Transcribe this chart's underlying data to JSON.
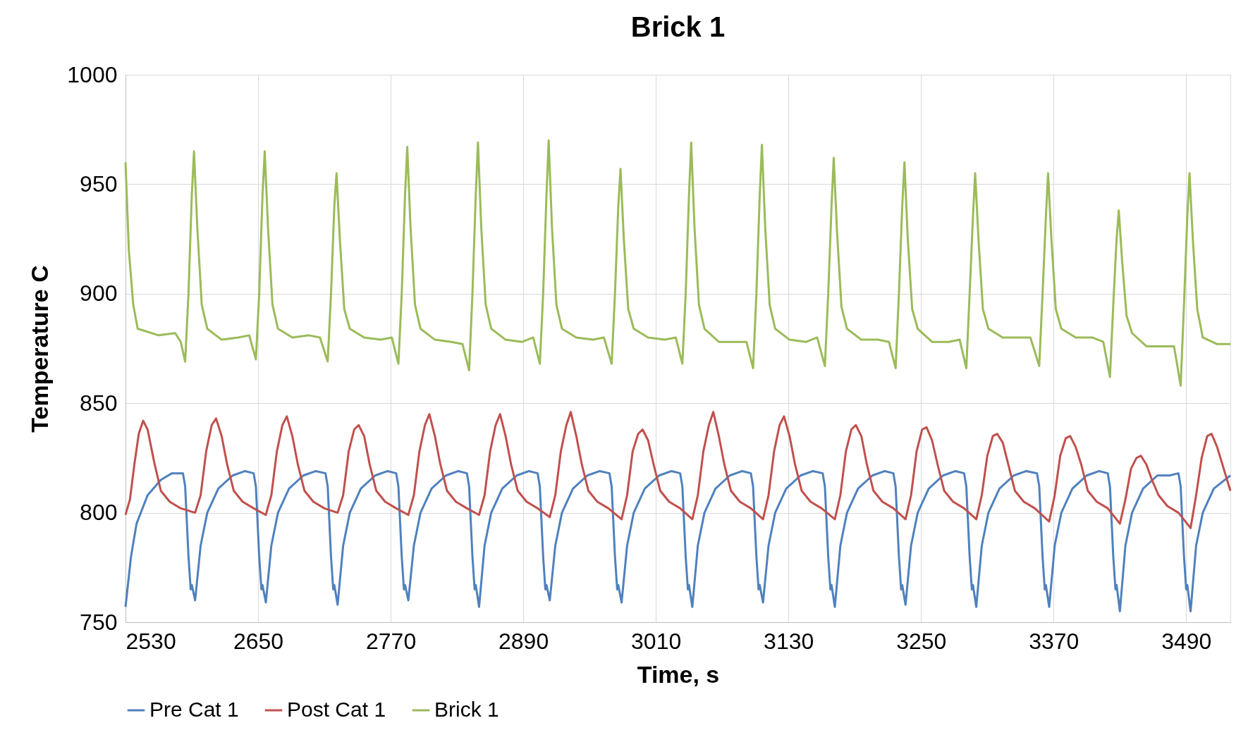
{
  "chart_data": {
    "type": "line",
    "title": "Brick 1",
    "xlabel": "Time, s",
    "ylabel": "Temperature C",
    "xlim": [
      2530,
      3530
    ],
    "xticks": [
      2530,
      2650,
      2770,
      2890,
      3010,
      3130,
      3250,
      3370,
      3490
    ],
    "ylim": [
      750,
      1000
    ],
    "yticks": [
      750,
      800,
      850,
      900,
      950,
      1000
    ],
    "grid": true,
    "legend": "bottom",
    "marker": "none",
    "line_style": "solid",
    "series": [
      {
        "name": "Pre Cat 1",
        "color": "#4f81bd",
        "x": [
          2530,
          2535,
          2540,
          2550,
          2562,
          2572,
          2582,
          2584,
          2587,
          2589,
          2590,
          2593,
          2598,
          2604,
          2614,
          2627,
          2638,
          2646,
          2648,
          2651,
          2653,
          2654,
          2657,
          2662,
          2668,
          2678,
          2691,
          2702,
          2711,
          2713,
          2716,
          2718,
          2719,
          2722,
          2727,
          2733,
          2743,
          2756,
          2767,
          2775,
          2777,
          2780,
          2782,
          2783,
          2786,
          2791,
          2797,
          2807,
          2820,
          2831,
          2839,
          2841,
          2844,
          2846,
          2847,
          2850,
          2855,
          2861,
          2871,
          2884,
          2895,
          2903,
          2905,
          2908,
          2910,
          2911,
          2914,
          2919,
          2925,
          2935,
          2948,
          2959,
          2968,
          2970,
          2973,
          2975,
          2976,
          2979,
          2984,
          2990,
          3000,
          3013,
          3024,
          3032,
          3034,
          3037,
          3039,
          3040,
          3043,
          3048,
          3054,
          3064,
          3077,
          3088,
          3096,
          3098,
          3101,
          3103,
          3104,
          3107,
          3112,
          3118,
          3128,
          3141,
          3152,
          3161,
          3163,
          3166,
          3168,
          3169,
          3172,
          3177,
          3183,
          3193,
          3206,
          3217,
          3225,
          3227,
          3230,
          3232,
          3233,
          3236,
          3241,
          3247,
          3257,
          3270,
          3281,
          3289,
          3291,
          3294,
          3296,
          3297,
          3300,
          3305,
          3311,
          3321,
          3334,
          3345,
          3355,
          3357,
          3360,
          3362,
          3363,
          3366,
          3371,
          3377,
          3387,
          3400,
          3411,
          3419,
          3421,
          3424,
          3426,
          3427,
          3430,
          3435,
          3441,
          3451,
          3464,
          3475,
          3483,
          3485,
          3488,
          3490,
          3491,
          3494,
          3499,
          3505,
          3515,
          3530
        ],
        "values": [
          757,
          780,
          795,
          808,
          815,
          818,
          818,
          812,
          780,
          765,
          767,
          760,
          785,
          800,
          811,
          817,
          819,
          818,
          812,
          780,
          765,
          767,
          759,
          785,
          800,
          811,
          817,
          819,
          818,
          812,
          780,
          765,
          767,
          758,
          785,
          800,
          811,
          817,
          819,
          818,
          812,
          780,
          765,
          767,
          760,
          785,
          800,
          811,
          817,
          819,
          818,
          812,
          780,
          765,
          767,
          757,
          785,
          800,
          811,
          817,
          819,
          818,
          812,
          780,
          765,
          767,
          760,
          785,
          800,
          811,
          817,
          819,
          818,
          812,
          780,
          765,
          767,
          759,
          785,
          800,
          811,
          817,
          819,
          818,
          812,
          780,
          765,
          767,
          757,
          785,
          800,
          811,
          817,
          819,
          818,
          812,
          780,
          765,
          767,
          759,
          785,
          800,
          811,
          817,
          819,
          818,
          812,
          780,
          765,
          767,
          757,
          785,
          800,
          811,
          817,
          819,
          818,
          812,
          780,
          765,
          767,
          758,
          785,
          800,
          811,
          817,
          819,
          818,
          812,
          780,
          765,
          767,
          757,
          785,
          800,
          811,
          817,
          819,
          818,
          812,
          780,
          765,
          767,
          757,
          785,
          800,
          811,
          817,
          819,
          818,
          812,
          780,
          765,
          767,
          755,
          785,
          800,
          811,
          817,
          817,
          818,
          812,
          780,
          765,
          767,
          755,
          785,
          800,
          811,
          817
        ]
      },
      {
        "name": "Post Cat 1",
        "color": "#c0504d",
        "x": [
          2530,
          2534,
          2538,
          2542,
          2546,
          2550,
          2556,
          2562,
          2570,
          2580,
          2593,
          2598,
          2603,
          2608,
          2612,
          2617,
          2622,
          2628,
          2636,
          2646,
          2657,
          2662,
          2667,
          2672,
          2676,
          2681,
          2686,
          2692,
          2700,
          2710,
          2722,
          2727,
          2732,
          2737,
          2741,
          2746,
          2751,
          2757,
          2765,
          2775,
          2786,
          2791,
          2796,
          2801,
          2805,
          2810,
          2815,
          2821,
          2829,
          2839,
          2850,
          2855,
          2860,
          2865,
          2869,
          2874,
          2879,
          2885,
          2893,
          2903,
          2914,
          2919,
          2924,
          2929,
          2933,
          2938,
          2943,
          2949,
          2957,
          2967,
          2979,
          2984,
          2989,
          2994,
          2998,
          3003,
          3008,
          3014,
          3022,
          3032,
          3043,
          3048,
          3053,
          3058,
          3062,
          3067,
          3072,
          3078,
          3086,
          3096,
          3107,
          3112,
          3117,
          3122,
          3126,
          3131,
          3136,
          3142,
          3150,
          3160,
          3172,
          3177,
          3182,
          3187,
          3191,
          3196,
          3201,
          3207,
          3215,
          3225,
          3236,
          3241,
          3246,
          3251,
          3255,
          3260,
          3265,
          3271,
          3279,
          3289,
          3300,
          3305,
          3310,
          3315,
          3319,
          3324,
          3329,
          3335,
          3343,
          3353,
          3366,
          3371,
          3376,
          3381,
          3385,
          3390,
          3395,
          3401,
          3409,
          3419,
          3430,
          3435,
          3440,
          3445,
          3449,
          3454,
          3459,
          3465,
          3473,
          3483,
          3494,
          3499,
          3504,
          3509,
          3513,
          3518,
          3524,
          3530
        ],
        "values": [
          799,
          806,
          822,
          836,
          842,
          838,
          823,
          810,
          805,
          802,
          800,
          808,
          828,
          840,
          843,
          835,
          822,
          810,
          805,
          802,
          799,
          808,
          828,
          840,
          844,
          835,
          822,
          810,
          805,
          802,
          800,
          808,
          828,
          838,
          840,
          835,
          822,
          810,
          805,
          802,
          799,
          808,
          828,
          840,
          845,
          835,
          822,
          810,
          805,
          802,
          799,
          808,
          828,
          840,
          845,
          835,
          822,
          810,
          805,
          802,
          798,
          808,
          828,
          840,
          846,
          835,
          822,
          810,
          805,
          802,
          797,
          808,
          828,
          836,
          838,
          833,
          822,
          810,
          805,
          802,
          797,
          808,
          828,
          840,
          846,
          835,
          822,
          810,
          805,
          802,
          797,
          808,
          828,
          840,
          844,
          835,
          822,
          810,
          805,
          802,
          797,
          808,
          828,
          838,
          840,
          835,
          822,
          810,
          805,
          802,
          797,
          808,
          828,
          838,
          839,
          833,
          822,
          810,
          805,
          802,
          797,
          808,
          826,
          835,
          836,
          832,
          822,
          810,
          805,
          802,
          796,
          808,
          826,
          834,
          835,
          830,
          822,
          810,
          805,
          802,
          795,
          806,
          820,
          825,
          826,
          822,
          815,
          808,
          803,
          800,
          793,
          808,
          825,
          835,
          836,
          830,
          820,
          810
        ]
      },
      {
        "name": "Brick 1",
        "color": "#9bbb59",
        "x": [
          2530,
          2533,
          2537,
          2541,
          2560,
          2575,
          2580,
          2584,
          2587,
          2590,
          2592,
          2595,
          2599,
          2604,
          2617,
          2632,
          2642,
          2648,
          2651,
          2654,
          2656,
          2659,
          2663,
          2668,
          2681,
          2696,
          2706,
          2713,
          2716,
          2719,
          2721,
          2724,
          2728,
          2733,
          2746,
          2761,
          2771,
          2777,
          2780,
          2783,
          2785,
          2788,
          2792,
          2797,
          2810,
          2825,
          2835,
          2841,
          2844,
          2847,
          2849,
          2852,
          2856,
          2861,
          2874,
          2889,
          2899,
          2905,
          2908,
          2911,
          2913,
          2916,
          2920,
          2925,
          2938,
          2953,
          2963,
          2970,
          2973,
          2976,
          2978,
          2981,
          2985,
          2990,
          3003,
          3018,
          3028,
          3034,
          3037,
          3040,
          3042,
          3045,
          3049,
          3054,
          3067,
          3082,
          3092,
          3098,
          3101,
          3104,
          3106,
          3109,
          3113,
          3118,
          3131,
          3146,
          3156,
          3163,
          3166,
          3169,
          3171,
          3174,
          3178,
          3183,
          3196,
          3211,
          3221,
          3227,
          3230,
          3233,
          3235,
          3238,
          3242,
          3247,
          3260,
          3275,
          3285,
          3291,
          3294,
          3297,
          3299,
          3302,
          3306,
          3311,
          3324,
          3339,
          3349,
          3357,
          3360,
          3363,
          3365,
          3368,
          3372,
          3377,
          3390,
          3405,
          3415,
          3421,
          3424,
          3427,
          3429,
          3432,
          3436,
          3441,
          3454,
          3469,
          3479,
          3485,
          3488,
          3491,
          3493,
          3496,
          3500,
          3505,
          3518,
          3530
        ],
        "values": [
          960,
          920,
          895,
          884,
          881,
          882,
          878,
          869,
          900,
          945,
          965,
          930,
          895,
          884,
          879,
          880,
          881,
          870,
          900,
          945,
          965,
          930,
          895,
          884,
          880,
          881,
          880,
          869,
          900,
          940,
          955,
          925,
          893,
          884,
          880,
          879,
          880,
          868,
          900,
          945,
          967,
          930,
          895,
          884,
          879,
          878,
          877,
          865,
          900,
          945,
          969,
          930,
          895,
          884,
          879,
          878,
          880,
          868,
          900,
          945,
          970,
          930,
          895,
          884,
          880,
          879,
          880,
          868,
          900,
          940,
          957,
          925,
          893,
          884,
          880,
          879,
          880,
          868,
          900,
          945,
          969,
          930,
          895,
          884,
          878,
          878,
          878,
          866,
          900,
          945,
          968,
          930,
          895,
          884,
          879,
          878,
          880,
          867,
          900,
          940,
          962,
          928,
          894,
          884,
          879,
          879,
          878,
          866,
          900,
          940,
          960,
          925,
          893,
          884,
          878,
          878,
          879,
          866,
          900,
          935,
          955,
          925,
          893,
          884,
          880,
          880,
          880,
          867,
          900,
          935,
          955,
          925,
          893,
          884,
          880,
          880,
          878,
          862,
          895,
          925,
          938,
          915,
          890,
          882,
          876,
          876,
          876,
          858,
          895,
          935,
          955,
          925,
          893,
          880,
          877,
          877
        ]
      }
    ]
  }
}
